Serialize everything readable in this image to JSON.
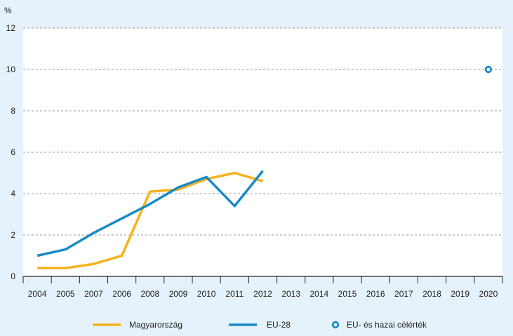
{
  "chart_data": {
    "type": "line",
    "unit_label": "%",
    "categories": [
      "2004",
      "2005",
      "2007",
      "2006",
      "2008",
      "2009",
      "2010",
      "2011",
      "2012",
      "2013",
      "2014",
      "2015",
      "2016",
      "2017",
      "2018",
      "2019",
      "2020"
    ],
    "ylim": [
      0,
      12
    ],
    "yticks": [
      "0",
      "2",
      "4",
      "6",
      "8",
      "10",
      "12"
    ],
    "grid": true,
    "series": [
      {
        "name": "Magyarország",
        "color": "#f6b21b",
        "values": [
          0.4,
          0.4,
          0.6,
          1.0,
          4.1,
          4.2,
          4.7,
          5.0,
          4.6,
          null,
          null,
          null,
          null,
          null,
          null,
          null,
          null
        ]
      },
      {
        "name": "EU-28",
        "color": "#1a8ac9",
        "values": [
          1.0,
          1.3,
          2.1,
          2.8,
          3.5,
          4.3,
          4.8,
          3.4,
          5.1,
          null,
          null,
          null,
          null,
          null,
          null,
          null,
          null
        ]
      }
    ],
    "targets": {
      "name": "EU- és hazai célérték",
      "color": "#1a8ac9",
      "points": [
        {
          "x": "2020",
          "y": 10.0
        }
      ]
    },
    "legend": [
      "Magyarország",
      "EU-28",
      "EU- és hazai célérték"
    ],
    "legend_position": "bottom"
  }
}
